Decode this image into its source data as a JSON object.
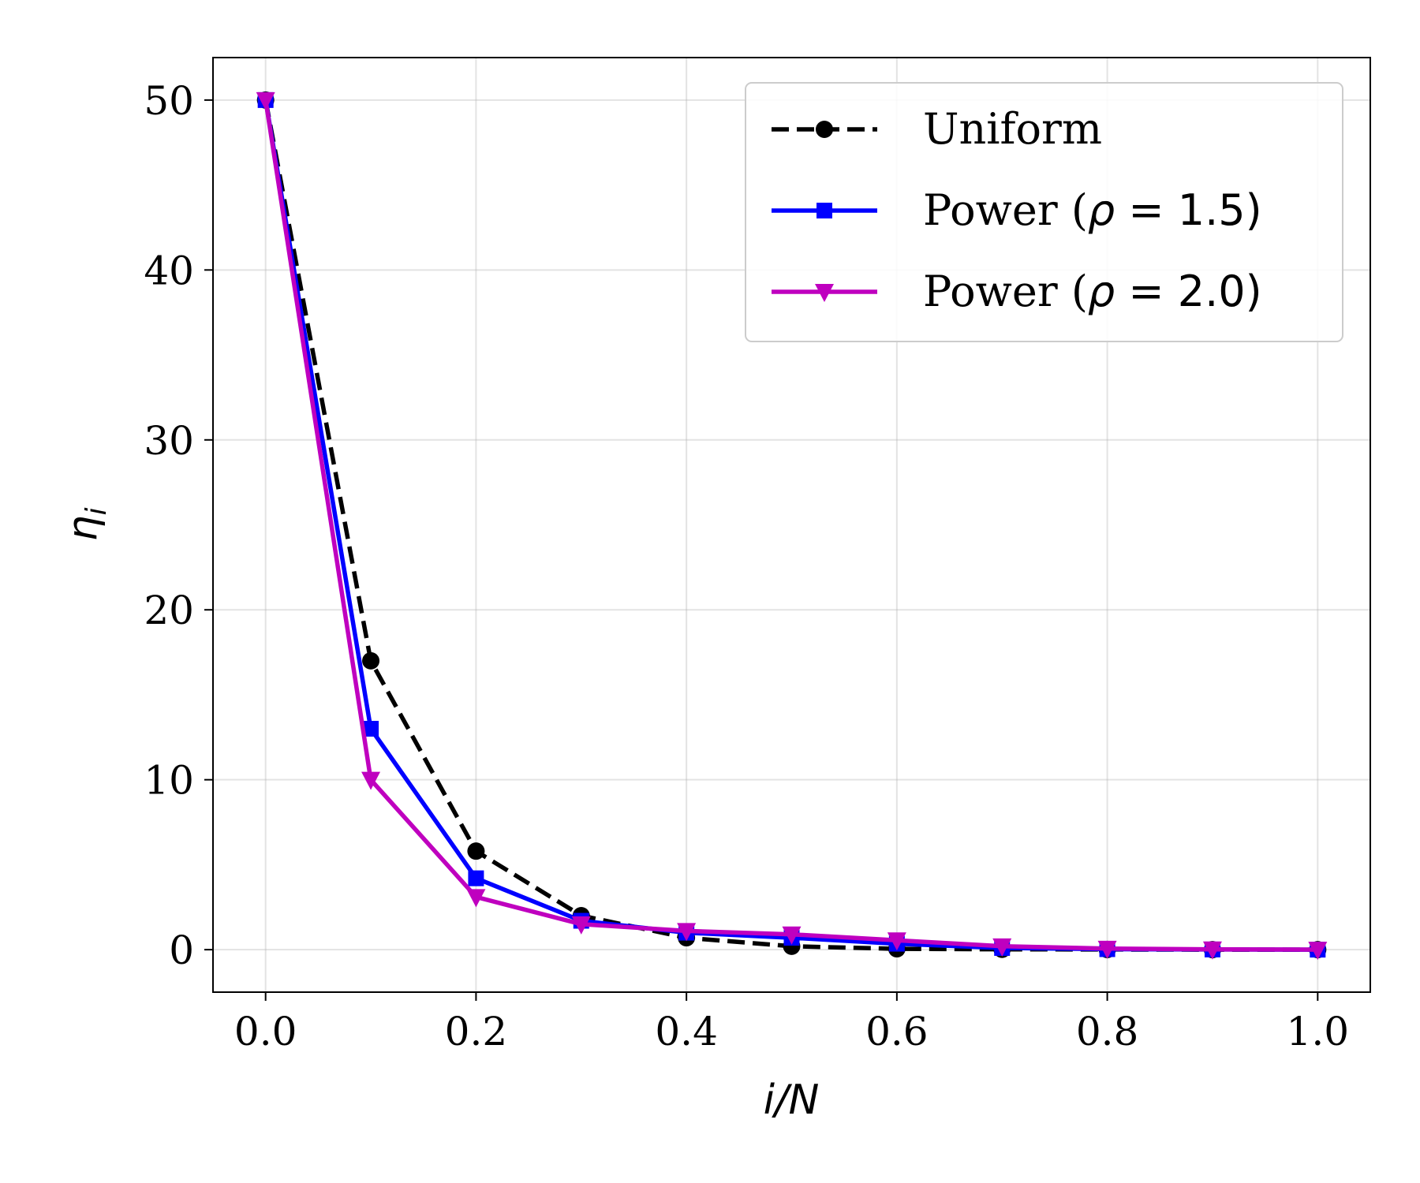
{
  "chart_data": {
    "type": "line",
    "title": "",
    "xlabel": "i/N",
    "ylabel": "η_i",
    "xlim": [
      -0.05,
      1.05
    ],
    "ylim": [
      -2.5,
      52.5
    ],
    "xticks": [
      0.0,
      0.2,
      0.4,
      0.6,
      0.8,
      1.0
    ],
    "xtick_labels": [
      "0.0",
      "0.2",
      "0.4",
      "0.6",
      "0.8",
      "1.0"
    ],
    "yticks": [
      0,
      10,
      20,
      30,
      40,
      50
    ],
    "ytick_labels": [
      "0",
      "10",
      "20",
      "30",
      "40",
      "50"
    ],
    "grid": true,
    "legend_position": "top-right",
    "x": [
      0.0,
      0.1,
      0.2,
      0.3,
      0.4,
      0.5,
      0.6,
      0.7,
      0.8,
      0.9,
      1.0
    ],
    "series": [
      {
        "name": "Uniform",
        "label_main": "Uniform",
        "label_math": "",
        "label_value": "",
        "color": "#000000",
        "line_style": "dashed",
        "marker": "circle",
        "values": [
          50.0,
          17.0,
          5.8,
          2.0,
          0.7,
          0.2,
          0.05,
          0.02,
          0.01,
          0.0,
          0.0
        ]
      },
      {
        "name": "Power (ρ = 1.5)",
        "label_main": "Power (",
        "label_math": "ρ",
        "label_value": " = 1.5)",
        "color": "#0000ff",
        "line_style": "solid",
        "marker": "square",
        "values": [
          50.0,
          13.0,
          4.2,
          1.7,
          1.0,
          0.7,
          0.35,
          0.1,
          0.03,
          0.01,
          0.0
        ]
      },
      {
        "name": "Power (ρ = 2.0)",
        "label_main": "Power (",
        "label_math": "ρ",
        "label_value": " = 2.0)",
        "color": "#bf00bf",
        "line_style": "solid",
        "marker": "triangle-down",
        "values": [
          50.0,
          10.0,
          3.1,
          1.5,
          1.1,
          0.9,
          0.55,
          0.2,
          0.06,
          0.02,
          0.0
        ]
      }
    ]
  }
}
